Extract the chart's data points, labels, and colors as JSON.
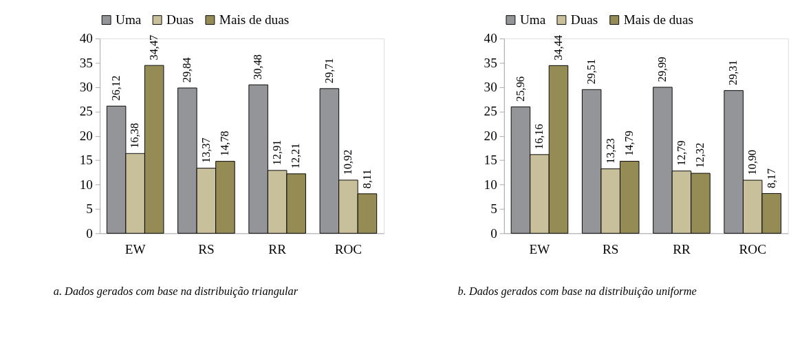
{
  "chart_data": [
    {
      "type": "bar",
      "categories": [
        "EW",
        "RS",
        "RR",
        "ROC"
      ],
      "ylim": [
        0,
        40
      ],
      "yticks": [
        0,
        5,
        10,
        15,
        20,
        25,
        30,
        35,
        40
      ],
      "grid": false,
      "legend": "top",
      "series": [
        {
          "name": "Uma",
          "color": "#939598",
          "values": [
            26.12,
            29.84,
            30.48,
            29.71
          ],
          "value_labels": [
            "26,12",
            "29,84",
            "30,48",
            "29,71"
          ]
        },
        {
          "name": "Duas",
          "color": "#c8c09a",
          "values": [
            16.38,
            13.37,
            12.91,
            10.92
          ],
          "value_labels": [
            "16,38",
            "13,37",
            "12,91",
            "10,92"
          ]
        },
        {
          "name": "Mais de duas",
          "color": "#958b55",
          "values": [
            34.47,
            14.78,
            12.21,
            8.11
          ],
          "value_labels": [
            "34,47",
            "14,78",
            "12,21",
            "8,11"
          ]
        }
      ],
      "annotations": [
        "a. Dados gerados com base na distribuição triangular"
      ]
    },
    {
      "type": "bar",
      "categories": [
        "EW",
        "RS",
        "RR",
        "ROC"
      ],
      "ylim": [
        0,
        40
      ],
      "yticks": [
        0,
        5,
        10,
        15,
        20,
        25,
        30,
        35,
        40
      ],
      "grid": false,
      "legend": "top",
      "series": [
        {
          "name": "Uma",
          "color": "#939598",
          "values": [
            25.96,
            29.51,
            29.99,
            29.31
          ],
          "value_labels": [
            "25,96",
            "29,51",
            "29,99",
            "29,31"
          ]
        },
        {
          "name": "Duas",
          "color": "#c8c09a",
          "values": [
            16.16,
            13.23,
            12.79,
            10.9
          ],
          "value_labels": [
            "16,16",
            "13,23",
            "12,79",
            "10,90"
          ]
        },
        {
          "name": "Mais de duas",
          "color": "#958b55",
          "values": [
            34.44,
            14.79,
            12.32,
            8.17
          ],
          "value_labels": [
            "34,44",
            "14,79",
            "12,32",
            "8,17"
          ]
        }
      ],
      "annotations": [
        "b. Dados gerados com base na distribuição uniforme"
      ]
    }
  ]
}
